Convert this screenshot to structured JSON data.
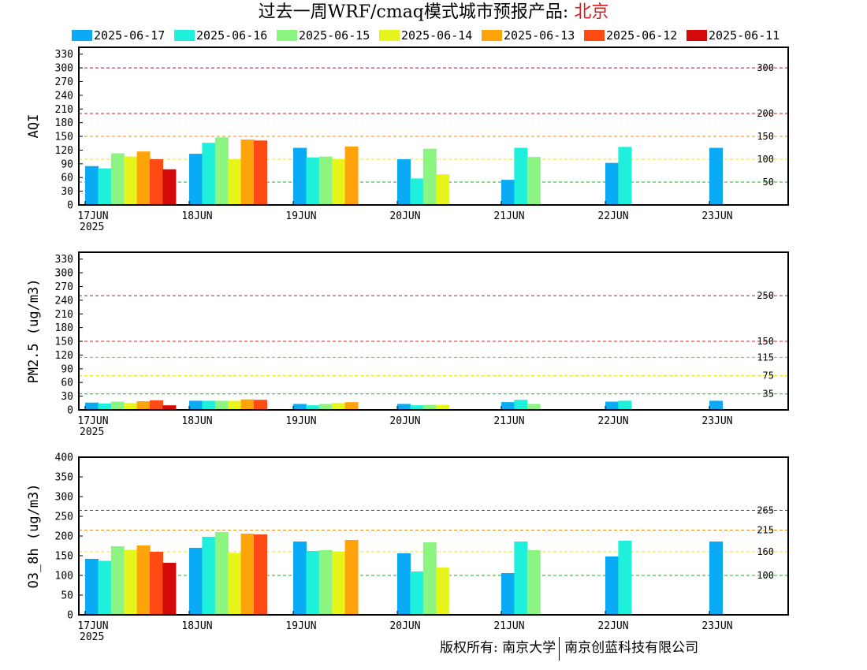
{
  "header": {
    "title_main": "过去一周WRF/cmaq模式城市预报产品: ",
    "title_city": "北京"
  },
  "footer": {
    "left": "版权所有: 南京大学",
    "right": "南京创蓝科技有限公司"
  },
  "chart_data": {
    "type": "bar",
    "categories": [
      "17JUN",
      "18JUN",
      "19JUN",
      "20JUN",
      "21JUN",
      "22JUN",
      "23JUN"
    ],
    "first_category_sublabel": "2025",
    "legend_position": "top",
    "series": [
      {
        "name": "2025-06-17",
        "color": "#0aaaf5"
      },
      {
        "name": "2025-06-16",
        "color": "#1ef0dc"
      },
      {
        "name": "2025-06-15",
        "color": "#8cf582"
      },
      {
        "name": "2025-06-14",
        "color": "#e8f51c"
      },
      {
        "name": "2025-06-13",
        "color": "#ffa30a"
      },
      {
        "name": "2025-06-12",
        "color": "#ff4a14"
      },
      {
        "name": "2025-06-11",
        "color": "#d40a0a"
      }
    ],
    "panels": [
      {
        "ylabel": "AQI",
        "ylim": [
          0,
          345
        ],
        "yticks": [
          0,
          30,
          60,
          90,
          120,
          150,
          180,
          210,
          240,
          270,
          300,
          330
        ],
        "thresholds": [
          {
            "value": 300,
            "label": "300",
            "color": "#a01a5a"
          },
          {
            "value": 200,
            "label": "200",
            "color": "#e01a1a"
          },
          {
            "value": 150,
            "label": "150",
            "color": "#f08c1a"
          },
          {
            "value": 100,
            "label": "100",
            "color": "#f0e01a"
          },
          {
            "value": 50,
            "label": "50",
            "color": "#1ab41a"
          }
        ],
        "values": [
          [
            85,
            112,
            125,
            100,
            55,
            92,
            125
          ],
          [
            80,
            136,
            104,
            58,
            125,
            127,
            null
          ],
          [
            113,
            148,
            106,
            123,
            105,
            null,
            null
          ],
          [
            106,
            100,
            100,
            67,
            null,
            null,
            null
          ],
          [
            117,
            143,
            128,
            null,
            null,
            null,
            null
          ],
          [
            100,
            141,
            null,
            null,
            null,
            null,
            null
          ],
          [
            78,
            null,
            null,
            null,
            null,
            null,
            null
          ]
        ]
      },
      {
        "ylabel": "PM2.5 (ug/m3)",
        "ylim": [
          0,
          345
        ],
        "yticks": [
          0,
          30,
          60,
          90,
          120,
          150,
          180,
          210,
          240,
          270,
          300,
          330
        ],
        "thresholds": [
          {
            "value": 250,
            "label": "250",
            "color": "#a01a5a"
          },
          {
            "value": 150,
            "label": "150",
            "color": "#e01a1a"
          },
          {
            "value": 115,
            "label": "115",
            "color": "#f08c1a"
          },
          {
            "value": 75,
            "label": "75",
            "color": "#f0e01a"
          },
          {
            "value": 35,
            "label": "35",
            "color": "#1ab41a"
          }
        ],
        "values": [
          [
            16,
            20,
            13,
            13,
            17,
            18,
            20
          ],
          [
            14,
            20,
            10,
            10,
            22,
            20,
            null
          ],
          [
            18,
            20,
            13,
            11,
            13,
            null,
            null
          ],
          [
            15,
            20,
            15,
            11,
            null,
            null,
            null
          ],
          [
            19,
            23,
            17,
            null,
            null,
            null,
            null
          ],
          [
            21,
            22,
            null,
            null,
            null,
            null,
            null
          ],
          [
            10,
            null,
            null,
            null,
            null,
            null,
            null
          ]
        ]
      },
      {
        "ylabel": "O3_8h (ug/m3)",
        "ylim": [
          0,
          400
        ],
        "yticks": [
          0,
          50,
          100,
          150,
          200,
          250,
          300,
          350,
          400
        ],
        "thresholds": [
          {
            "value": 265,
            "label": "265",
            "color": "#e01a1a"
          },
          {
            "value": 215,
            "label": "215",
            "color": "#f08c1a"
          },
          {
            "value": 160,
            "label": "160",
            "color": "#f0e01a"
          },
          {
            "value": 100,
            "label": "100",
            "color": "#1ab41a"
          }
        ],
        "values": [
          [
            142,
            170,
            186,
            156,
            106,
            148,
            186
          ],
          [
            137,
            198,
            162,
            110,
            186,
            188,
            null
          ],
          [
            174,
            210,
            164,
            184,
            164,
            null,
            null
          ],
          [
            165,
            157,
            161,
            120,
            null,
            null,
            null
          ],
          [
            176,
            206,
            190,
            null,
            null,
            null,
            null
          ],
          [
            160,
            204,
            null,
            null,
            null,
            null,
            null
          ],
          [
            132,
            null,
            null,
            null,
            null,
            null,
            null
          ]
        ]
      }
    ]
  }
}
